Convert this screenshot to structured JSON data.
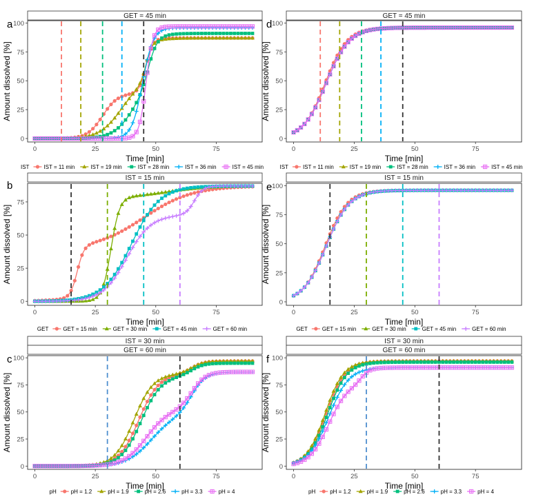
{
  "chart_data": [
    {
      "panel": "a",
      "type": "line",
      "strip": [
        "GET = 45 min"
      ],
      "xlabel": "Time [min]",
      "ylabel": "Amount dissolved [%]",
      "xlim": [
        -3,
        94
      ],
      "ylim": [
        -3,
        102
      ],
      "xticks": [
        0,
        25,
        50,
        75
      ],
      "yticks": [
        0,
        25,
        50,
        75,
        100
      ],
      "legend_title": "IST",
      "series": [
        {
          "name": "IST = 11 min",
          "color": "#F8766D",
          "marker": "circle",
          "curve": {
            "plateau": 87,
            "parts": [
              {
                "w": 0.45,
                "c": 28,
                "k": 0.32
              },
              {
                "w": 0.55,
                "c": 46,
                "k": 0.7
              }
            ]
          }
        },
        {
          "name": "IST = 19 min",
          "color": "#A3A500",
          "marker": "triangle",
          "curve": {
            "plateau": 87,
            "parts": [
              {
                "w": 0.6,
                "c": 36,
                "k": 0.22
              },
              {
                "w": 0.4,
                "c": 46,
                "k": 0.8
              }
            ]
          }
        },
        {
          "name": "IST = 28 min",
          "color": "#00BF7D",
          "marker": "square",
          "curve": {
            "plateau": 91,
            "parts": [
              {
                "w": 0.5,
                "c": 40,
                "k": 0.25
              },
              {
                "w": 0.5,
                "c": 47,
                "k": 0.55
              }
            ]
          }
        },
        {
          "name": "IST = 36 min",
          "color": "#00B0F6",
          "marker": "plus",
          "curve": {
            "plateau": 96,
            "parts": [
              {
                "w": 1,
                "c": 44.5,
                "k": 0.45
              }
            ]
          }
        },
        {
          "name": "IST = 45 min",
          "color": "#E76BF3",
          "marker": "boxplus",
          "curve": {
            "plateau": 97,
            "parts": [
              {
                "w": 1,
                "c": 46,
                "k": 0.7
              }
            ]
          }
        }
      ],
      "vlines": [
        {
          "x": 11,
          "color": "#F8766D"
        },
        {
          "x": 19,
          "color": "#A3A500"
        },
        {
          "x": 28,
          "color": "#00BF7D"
        },
        {
          "x": 36,
          "color": "#00B0F6"
        },
        {
          "x": 45,
          "color": "#333333"
        }
      ]
    },
    {
      "panel": "b",
      "type": "line",
      "strip": [
        "IST = 15 min"
      ],
      "xlabel": "Time [min]",
      "ylabel": "Amount dissolved [%]",
      "xlim": [
        -3,
        94
      ],
      "ylim": [
        -3,
        89
      ],
      "xticks": [
        0,
        25,
        50,
        75
      ],
      "yticks": [
        0,
        25,
        50,
        75
      ],
      "legend_title": "GET",
      "series": [
        {
          "name": "GET = 15 min",
          "color": "#F8766D",
          "marker": "circle",
          "curve": {
            "plateau": 87,
            "parts": [
              {
                "w": 0.45,
                "c": 17.5,
                "k": 0.7
              },
              {
                "w": 0.55,
                "c": 45,
                "k": 0.1
              }
            ]
          }
        },
        {
          "name": "GET = 30 min",
          "color": "#7CAE00",
          "marker": "triangle",
          "curve": {
            "plateau": 87,
            "parts": [
              {
                "w": 0.9,
                "c": 31.5,
                "k": 0.55
              },
              {
                "w": 0.1,
                "c": 55,
                "k": 0.12
              }
            ]
          }
        },
        {
          "name": "GET = 45 min",
          "color": "#00BFC4",
          "marker": "square",
          "curve": {
            "plateau": 87,
            "parts": [
              {
                "w": 1,
                "c": 40,
                "k": 0.17
              }
            ]
          }
        },
        {
          "name": "GET = 60 min",
          "color": "#C77CFF",
          "marker": "plus",
          "curve": {
            "plateau": 87,
            "parts": [
              {
                "w": 0.75,
                "c": 38,
                "k": 0.2
              },
              {
                "w": 0.25,
                "c": 66,
                "k": 0.55
              }
            ]
          }
        }
      ],
      "vlines": [
        {
          "x": 15,
          "color": "#333333"
        },
        {
          "x": 30,
          "color": "#7CAE00"
        },
        {
          "x": 45,
          "color": "#00BFC4"
        },
        {
          "x": 60,
          "color": "#C77CFF"
        }
      ]
    },
    {
      "panel": "c",
      "type": "line",
      "strip": [
        "IST = 30 min",
        "GET = 60 min"
      ],
      "xlabel": "Time [min]",
      "ylabel": "Amount dissolved [%]",
      "xlim": [
        -3,
        94
      ],
      "ylim": [
        -3,
        102
      ],
      "xticks": [
        0,
        25,
        50,
        75
      ],
      "yticks": [
        0,
        25,
        50,
        75,
        100
      ],
      "legend_title": "pH",
      "series": [
        {
          "name": "pH = 1.2",
          "color": "#F8766D",
          "marker": "circle",
          "curve": {
            "plateau": 97,
            "parts": [
              {
                "w": 0.88,
                "c": 43,
                "k": 0.24
              },
              {
                "w": 0.12,
                "c": 65,
                "k": 0.4
              }
            ]
          }
        },
        {
          "name": "pH = 1.9",
          "color": "#A3A500",
          "marker": "triangle",
          "curve": {
            "plateau": 97,
            "parts": [
              {
                "w": 0.88,
                "c": 41,
                "k": 0.25
              },
              {
                "w": 0.12,
                "c": 65,
                "k": 0.4
              }
            ]
          }
        },
        {
          "name": "pH = 2.6",
          "color": "#00BF7D",
          "marker": "square",
          "curve": {
            "plateau": 95,
            "parts": [
              {
                "w": 0.88,
                "c": 44,
                "k": 0.24
              },
              {
                "w": 0.12,
                "c": 65,
                "k": 0.4
              }
            ]
          }
        },
        {
          "name": "pH = 3.3",
          "color": "#00B0F6",
          "marker": "plus",
          "curve": {
            "plateau": 87,
            "parts": [
              {
                "w": 0.55,
                "c": 48,
                "k": 0.2
              },
              {
                "w": 0.45,
                "c": 65,
                "k": 0.35
              }
            ]
          }
        },
        {
          "name": "pH = 4",
          "color": "#E76BF3",
          "marker": "boxplus",
          "curve": {
            "plateau": 87,
            "parts": [
              {
                "w": 0.6,
                "c": 46,
                "k": 0.22
              },
              {
                "w": 0.4,
                "c": 65,
                "k": 0.35
              }
            ]
          }
        }
      ],
      "vlines": [
        {
          "x": 30,
          "color": "#4F8FCF"
        },
        {
          "x": 60,
          "color": "#333333"
        }
      ]
    },
    {
      "panel": "d",
      "type": "line",
      "strip": [
        "GET = 45 min"
      ],
      "xlabel": "Time [min]",
      "ylabel": "Amount dissolved [%]",
      "xlim": [
        -3,
        94
      ],
      "ylim": [
        -3,
        102
      ],
      "xticks": [
        0,
        25,
        50,
        75
      ],
      "yticks": [
        0,
        25,
        50,
        75,
        100
      ],
      "legend_title": "IST",
      "series": [
        {
          "name": "IST = 11 min",
          "color": "#F8766D",
          "marker": "circle",
          "curve": {
            "plateau": 96,
            "parts": [
              {
                "w": 1,
                "c": 13,
                "k": 0.22
              }
            ]
          }
        },
        {
          "name": "IST = 19 min",
          "color": "#A3A500",
          "marker": "triangle",
          "curve": {
            "plateau": 96,
            "parts": [
              {
                "w": 1,
                "c": 13.5,
                "k": 0.21
              }
            ]
          }
        },
        {
          "name": "IST = 28 min",
          "color": "#00BF7D",
          "marker": "square",
          "curve": {
            "plateau": 96,
            "parts": [
              {
                "w": 1,
                "c": 13.5,
                "k": 0.21
              }
            ]
          }
        },
        {
          "name": "IST = 36 min",
          "color": "#00B0F6",
          "marker": "plus",
          "curve": {
            "plateau": 96,
            "parts": [
              {
                "w": 1,
                "c": 13.5,
                "k": 0.21
              }
            ]
          }
        },
        {
          "name": "IST = 45 min",
          "color": "#E76BF3",
          "marker": "boxplus",
          "curve": {
            "plateau": 96,
            "parts": [
              {
                "w": 1,
                "c": 13.5,
                "k": 0.21
              }
            ]
          }
        }
      ],
      "vlines": [
        {
          "x": 11,
          "color": "#F8766D"
        },
        {
          "x": 19,
          "color": "#A3A500"
        },
        {
          "x": 28,
          "color": "#00BF7D"
        },
        {
          "x": 36,
          "color": "#00B0F6"
        },
        {
          "x": 45,
          "color": "#333333"
        }
      ]
    },
    {
      "panel": "e",
      "type": "line",
      "strip": [
        "IST = 15 min"
      ],
      "xlabel": "Time [min]",
      "ylabel": "Amount dissolved [%]",
      "xlim": [
        -3,
        94
      ],
      "ylim": [
        -3,
        102
      ],
      "xticks": [
        0,
        25,
        50,
        75
      ],
      "yticks": [
        0,
        25,
        50,
        75,
        100
      ],
      "legend_title": "GET",
      "series": [
        {
          "name": "GET = 15 min",
          "color": "#F8766D",
          "marker": "circle",
          "curve": {
            "plateau": 96,
            "parts": [
              {
                "w": 1,
                "c": 13,
                "k": 0.22
              }
            ]
          }
        },
        {
          "name": "GET = 30 min",
          "color": "#7CAE00",
          "marker": "triangle",
          "curve": {
            "plateau": 96,
            "parts": [
              {
                "w": 1,
                "c": 13.5,
                "k": 0.21
              }
            ]
          }
        },
        {
          "name": "GET = 45 min",
          "color": "#00BFC4",
          "marker": "square",
          "curve": {
            "plateau": 96,
            "parts": [
              {
                "w": 1,
                "c": 13.5,
                "k": 0.21
              }
            ]
          }
        },
        {
          "name": "GET = 60 min",
          "color": "#C77CFF",
          "marker": "plus",
          "curve": {
            "plateau": 96,
            "parts": [
              {
                "w": 1,
                "c": 13.5,
                "k": 0.21
              }
            ]
          }
        }
      ],
      "vlines": [
        {
          "x": 15,
          "color": "#333333"
        },
        {
          "x": 30,
          "color": "#7CAE00"
        },
        {
          "x": 45,
          "color": "#00BFC4"
        },
        {
          "x": 60,
          "color": "#C77CFF"
        }
      ]
    },
    {
      "panel": "f",
      "type": "line",
      "strip": [
        "IST = 30 min",
        "GET = 60 min"
      ],
      "xlabel": "Time [min]",
      "ylabel": "Amount dissolved [%]",
      "xlim": [
        -3,
        94
      ],
      "ylim": [
        -3,
        102
      ],
      "xticks": [
        0,
        25,
        50,
        75
      ],
      "yticks": [
        0,
        25,
        50,
        75,
        100
      ],
      "legend_title": "pH",
      "series": [
        {
          "name": "pH = 1.2",
          "color": "#F8766D",
          "marker": "circle",
          "curve": {
            "plateau": 97,
            "parts": [
              {
                "w": 1,
                "c": 13.5,
                "k": 0.25
              }
            ]
          }
        },
        {
          "name": "pH = 1.9",
          "color": "#A3A500",
          "marker": "triangle",
          "curve": {
            "plateau": 97,
            "parts": [
              {
                "w": 1,
                "c": 13,
                "k": 0.26
              }
            ]
          }
        },
        {
          "name": "pH = 2.6",
          "color": "#00BF7D",
          "marker": "square",
          "curve": {
            "plateau": 96,
            "parts": [
              {
                "w": 1,
                "c": 14,
                "k": 0.25
              }
            ]
          }
        },
        {
          "name": "pH = 3.3",
          "color": "#00B0F6",
          "marker": "plus",
          "curve": {
            "plateau": 91,
            "parts": [
              {
                "w": 1,
                "c": 14.5,
                "k": 0.24
              }
            ]
          }
        },
        {
          "name": "pH = 4",
          "color": "#E76BF3",
          "marker": "boxplus",
          "curve": {
            "plateau": 91,
            "parts": [
              {
                "w": 0.85,
                "c": 14.5,
                "k": 0.25
              },
              {
                "w": 0.15,
                "c": 28,
                "k": 0.6
              }
            ]
          }
        }
      ],
      "vlines": [
        {
          "x": 30,
          "color": "#4F8FCF"
        },
        {
          "x": 60,
          "color": "#333333"
        }
      ]
    }
  ]
}
